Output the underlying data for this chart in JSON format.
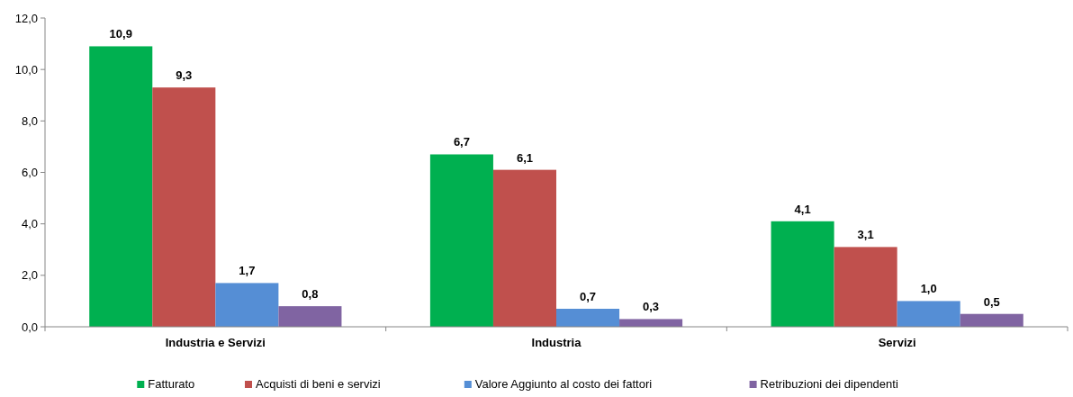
{
  "chart_data": {
    "type": "bar",
    "categories": [
      "Industria e Servizi",
      "Industria",
      "Servizi"
    ],
    "series": [
      {
        "name": "Fatturato",
        "color": "#00b050",
        "values": [
          10.9,
          6.7,
          4.1
        ],
        "value_labels": [
          "10,9",
          "6,7",
          "4,1"
        ]
      },
      {
        "name": "Acquisti di beni e servizi",
        "color": "#c0504d",
        "values": [
          9.3,
          6.1,
          3.1
        ],
        "value_labels": [
          "9,3",
          "6,1",
          "3,1"
        ]
      },
      {
        "name": "Valore Aggiunto al costo dei fattori",
        "color": "#558ed5",
        "values": [
          1.7,
          0.7,
          1.0
        ],
        "value_labels": [
          "1,7",
          "0,7",
          "1,0"
        ]
      },
      {
        "name": "Retribuzioni dei dipendenti",
        "color": "#8064a2",
        "values": [
          0.8,
          0.3,
          0.5
        ],
        "value_labels": [
          "0,8",
          "0,3",
          "0,5"
        ]
      }
    ],
    "ylim": [
      0,
      12
    ],
    "yticks": [
      {
        "value": 0,
        "label": "0,0"
      },
      {
        "value": 2,
        "label": "2,0"
      },
      {
        "value": 4,
        "label": "4,0"
      },
      {
        "value": 6,
        "label": "6,0"
      },
      {
        "value": 8,
        "label": "8,0"
      },
      {
        "value": 10,
        "label": "10,0"
      },
      {
        "value": 12,
        "label": "12,0"
      }
    ],
    "grid": false,
    "legend": "bottom"
  }
}
